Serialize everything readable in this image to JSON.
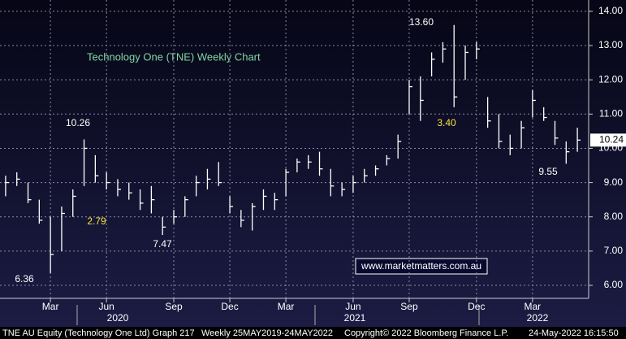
{
  "chart_data": {
    "type": "ohlc",
    "title": "Technology One (TNE) Weekly Chart",
    "categories": [
      null,
      null,
      null,
      null,
      "Mar",
      null,
      null,
      null,
      null,
      "Jun",
      null,
      null,
      null,
      null,
      null,
      "Sep",
      null,
      null,
      null,
      null,
      "Dec",
      null,
      null,
      null,
      null,
      "Mar",
      null,
      null,
      null,
      null,
      null,
      "Jun",
      null,
      null,
      null,
      null,
      "Sep",
      null,
      null,
      null,
      null,
      null,
      "Dec",
      null,
      null,
      null,
      null,
      "Mar",
      null,
      null,
      null,
      null
    ],
    "years": [
      "2020",
      "2021",
      "2022"
    ],
    "high": [
      9.2,
      9.3,
      9.0,
      8.5,
      8.0,
      8.3,
      8.8,
      10.26,
      9.8,
      9.3,
      9.1,
      9.0,
      8.8,
      8.9,
      8.0,
      8.2,
      8.6,
      9.2,
      9.4,
      9.6,
      8.6,
      8.2,
      8.4,
      8.8,
      8.7,
      9.4,
      9.7,
      9.8,
      9.9,
      9.4,
      9.0,
      9.2,
      9.4,
      9.5,
      9.8,
      10.4,
      12.0,
      12.1,
      12.8,
      13.1,
      13.6,
      13.0,
      13.1,
      11.5,
      11.0,
      10.4,
      10.8,
      11.7,
      11.2,
      10.8,
      10.2,
      10.6
    ],
    "low": [
      8.6,
      8.9,
      8.4,
      7.8,
      6.36,
      7.0,
      8.0,
      8.9,
      9.0,
      8.8,
      8.6,
      8.5,
      8.2,
      8.1,
      7.47,
      7.8,
      8.0,
      8.6,
      8.8,
      8.9,
      8.1,
      7.7,
      7.6,
      8.2,
      8.2,
      8.6,
      9.3,
      9.4,
      9.2,
      8.6,
      8.6,
      8.7,
      9.0,
      9.2,
      9.5,
      9.7,
      11.0,
      10.8,
      12.1,
      12.5,
      11.2,
      12.0,
      12.6,
      10.6,
      10.0,
      9.8,
      10.0,
      10.9,
      10.8,
      10.1,
      9.55,
      9.9
    ],
    "close": [
      9.0,
      9.1,
      8.5,
      7.9,
      6.9,
      8.1,
      8.6,
      10.0,
      9.2,
      9.0,
      8.8,
      8.7,
      8.4,
      8.5,
      7.7,
      8.0,
      8.5,
      9.0,
      9.1,
      9.0,
      8.3,
      7.9,
      8.3,
      8.6,
      8.5,
      9.3,
      9.6,
      9.6,
      9.4,
      8.9,
      8.8,
      9.0,
      9.2,
      9.4,
      9.7,
      10.2,
      11.8,
      11.4,
      12.6,
      12.9,
      11.5,
      12.8,
      12.9,
      10.8,
      10.2,
      10.0,
      10.6,
      11.4,
      10.9,
      10.3,
      9.9,
      10.24
    ],
    "color": "#ffffff",
    "ylim": [
      5.62,
      14.33
    ],
    "yticks": [
      {
        "value": 6,
        "label": "6.00"
      },
      {
        "value": 7,
        "label": "7.00"
      },
      {
        "value": 8,
        "label": "8.00"
      },
      {
        "value": 9,
        "label": "9.00"
      },
      {
        "value": 10,
        "label": "10.00"
      },
      {
        "value": 11,
        "label": "11.00"
      },
      {
        "value": 12,
        "label": "12.00"
      },
      {
        "value": 13,
        "label": "13.00"
      },
      {
        "value": 14,
        "label": "14.00"
      }
    ],
    "grid": true,
    "last_price": {
      "value": 10.24,
      "label": "10.24"
    },
    "annotations": [
      "10.26",
      "2.79",
      "7.47",
      "6.36",
      "13.60",
      "3.40",
      "9.55"
    ],
    "watermark": "www.marketmatters.com.au",
    "footer": [
      "TNE AU Equity (Technology One Ltd) Graph 217",
      "Weekly 25MAY2019-24MAY2022",
      "Copyright© 2022 Bloomberg Finance L.P.",
      "24-May-2022 16:15:50"
    ]
  }
}
